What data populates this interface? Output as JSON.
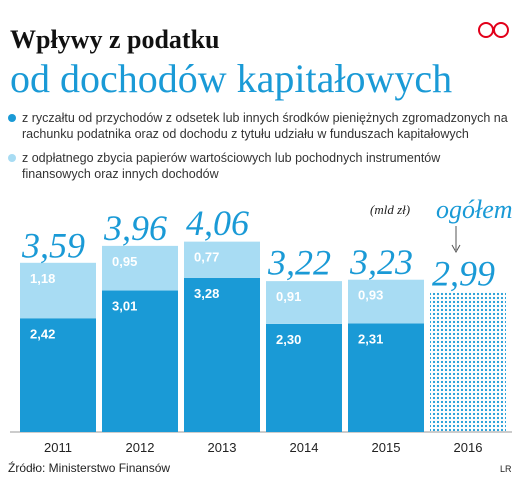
{
  "chart_data": {
    "type": "bar",
    "title": "Wpływy z podatku",
    "subtitle": "od dochodów kapitałowych",
    "unit": "(mld zł)",
    "annotation": "ogółem",
    "source": "Źródło: Ministerstwo Finansów",
    "credit": "LR",
    "categories": [
      "2011",
      "2012",
      "2013",
      "2014",
      "2015",
      "2016"
    ],
    "series": [
      {
        "name": "z ryczałtu od przychodów z odsetek lub innych środków pieniężnych zgromadzonych na rachunku podatnika oraz od dochodu z tytułu udziału w funduszach kapitałowych",
        "color": "#1a9ad6",
        "values": [
          2.42,
          3.01,
          3.28,
          2.3,
          2.31,
          null
        ],
        "value_labels": [
          "2,42",
          "3,01",
          "3,28",
          "2,30",
          "2,31",
          null
        ]
      },
      {
        "name": "z odpłatnego zbycia papierów wartościowych lub pochodnych instrumentów finansowych oraz innych dochodów",
        "color": "#a8dcf3",
        "values": [
          1.18,
          0.95,
          0.77,
          0.91,
          0.93,
          null
        ],
        "value_labels": [
          "1,18",
          "0,95",
          "0,77",
          "0,91",
          "0,93",
          null
        ]
      }
    ],
    "totals": [
      3.59,
      3.96,
      4.06,
      3.22,
      3.23,
      2.99
    ],
    "total_labels": [
      "3,59",
      "3,96",
      "4,06",
      "3,22",
      "3,23",
      "2,99"
    ]
  }
}
